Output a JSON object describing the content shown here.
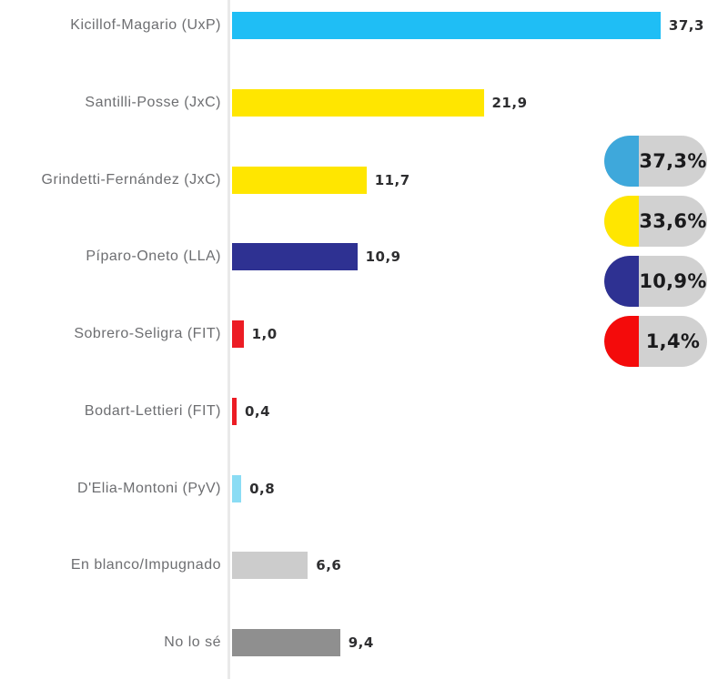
{
  "chart_data": {
    "type": "bar",
    "orientation": "horizontal",
    "title": "",
    "xlabel": "",
    "ylabel": "",
    "xlim": [
      0,
      40
    ],
    "grid": false,
    "decimal_separator": ",",
    "categories": [
      "Kicillof-Magario (UxP)",
      "Santilli-Posse (JxC)",
      "Grindetti-Fernández (JxC)",
      "Píparo-Oneto (LLA)",
      "Sobrero-Seligra (FIT)",
      "Bodart-Lettieri (FIT)",
      "D'Elia-Montoni (PyV)",
      "En blanco/Impugnado",
      "No lo sé"
    ],
    "values": [
      37.3,
      21.9,
      11.7,
      10.9,
      1.0,
      0.4,
      0.8,
      6.6,
      9.4
    ],
    "value_labels": [
      "37,3",
      "21,9",
      "11,7",
      "10,9",
      "1,0",
      "0,4",
      "0,8",
      "6,6",
      "9,4"
    ],
    "bar_colors": [
      "#1FBEF5",
      "#FFE600",
      "#FFE600",
      "#2E3192",
      "#EC1C24",
      "#EC1C24",
      "#8ADCF4",
      "#CCCCCC",
      "#8F8F8F"
    ],
    "legend": {
      "position": "right",
      "items": [
        {
          "label": "37,3%",
          "color": "#3EA8DB"
        },
        {
          "label": "33,6%",
          "color": "#FFE600"
        },
        {
          "label": "10,9%",
          "color": "#2E3192"
        },
        {
          "label": "1,4%",
          "color": "#F40B0B"
        }
      ]
    }
  },
  "colors": {
    "background": "#FFFFFF",
    "axis_line": "#E9E9E9",
    "category_label": "#6D6E71",
    "value_label": "#2E2E30",
    "legend_pill_bg": "#D1D1D1",
    "legend_text": "#1A1A1C"
  }
}
